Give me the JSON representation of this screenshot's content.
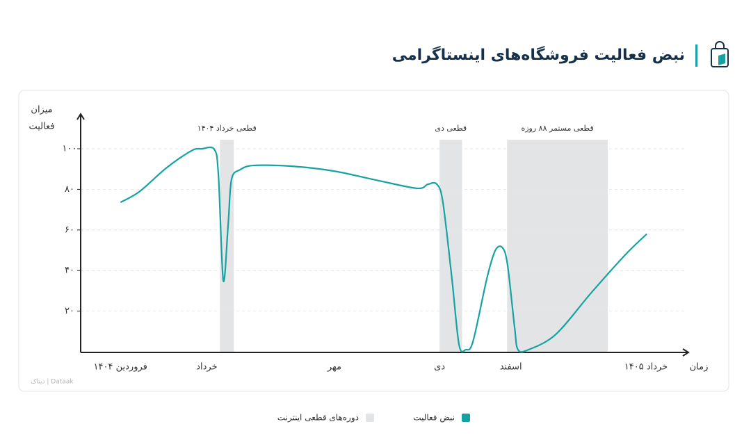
{
  "chart_data": {
    "type": "line",
    "title": "نبض فعالیت فروشگاه‌های اینستاگرامی",
    "y_label": "میزان فعالیت",
    "x_label": "زمان",
    "watermark": "دیتاک | Dataak",
    "xlim": [
      -1.06,
      15.13
    ],
    "xticks": [
      {
        "value": 0,
        "label": "فروردین ۱۴۰۴"
      },
      {
        "value": 2.3,
        "label": "خرداد"
      },
      {
        "value": 5.7,
        "label": "مهر"
      },
      {
        "value": 8.5,
        "label": "دی"
      },
      {
        "value": 10.4,
        "label": "اسفند"
      },
      {
        "value": 14,
        "label": "خرداد ۱۴۰۵"
      }
    ],
    "ylim": [
      0,
      115
    ],
    "yticks": [
      {
        "value": 20,
        "label": "۲۰"
      },
      {
        "value": 40,
        "label": "۴۰"
      },
      {
        "value": 60,
        "label": "۶۰"
      },
      {
        "value": 80,
        "label": "۸۰"
      },
      {
        "value": 100,
        "label": "۱۰۰"
      }
    ],
    "grid": true,
    "series": [
      {
        "name": "نبض فعالیت",
        "color": "#17a2a2",
        "x": [
          0,
          0.5,
          1.24,
          1.89,
          2.17,
          2.5,
          2.61,
          2.74,
          2.87,
          2.96,
          3.19,
          3.56,
          4.57,
          5.69,
          6.8,
          7.9,
          8.19,
          8.43,
          8.59,
          8.83,
          9.02,
          9.2,
          9.39,
          9.76,
          9.98,
          10.17,
          10.31,
          10.5,
          10.59,
          10.87,
          11.6,
          12.54,
          13.46,
          14.02
        ],
        "values": [
          73.6,
          78.8,
          90.8,
          99,
          100,
          99.7,
          87,
          35,
          63,
          85,
          89.7,
          91.8,
          91.4,
          89,
          84.6,
          80.5,
          82.5,
          82.5,
          73.6,
          36,
          3.4,
          1,
          5,
          36,
          49.7,
          51.4,
          43,
          12,
          1,
          1,
          8.6,
          29,
          48,
          58
        ]
      }
    ],
    "bands": {
      "name": "دوره‌های قطعی اینترنت",
      "color": "#e3e4e6",
      "regions": [
        {
          "label": "قطعی خرداد ۱۴۰۴",
          "start": 2.65,
          "end": 3.02
        },
        {
          "label": "قطعی دی",
          "start": 8.5,
          "end": 9.1
        },
        {
          "label": "قطعی مستمر ۸۸ روزه",
          "start": 10.3,
          "end": 12.98
        }
      ]
    }
  }
}
